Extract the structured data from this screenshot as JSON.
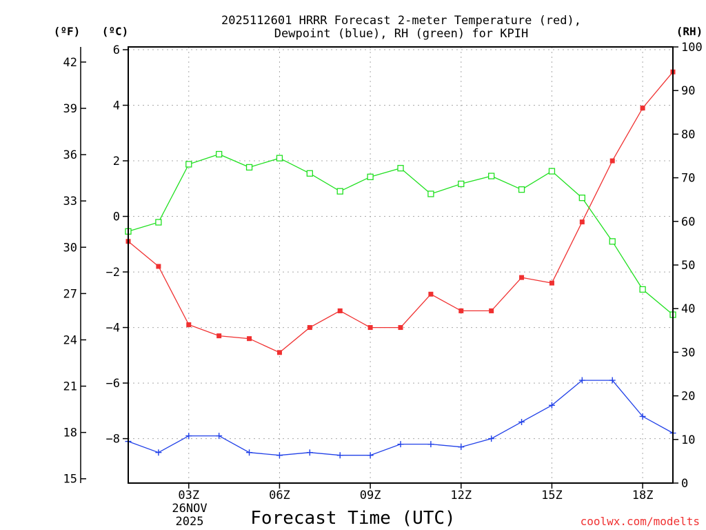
{
  "chart_data": {
    "type": "line",
    "title_line1": "2025112601 HRRR Forecast 2-meter Temperature (red),",
    "title_line2": "Dewpoint (blue), RH (green) for KPIH",
    "xlabel": "Forecast Time (UTC)",
    "date_line1": "26NOV",
    "date_line2": "2025",
    "credit": "coolwx.com/modelts",
    "x_hours": [
      1,
      2,
      3,
      4,
      5,
      6,
      7,
      8,
      9,
      10,
      11,
      12,
      13,
      14,
      15,
      16,
      17,
      18,
      19
    ],
    "x_range": [
      1,
      19
    ],
    "x_ticks": [
      {
        "hour": 3,
        "label": "03Z"
      },
      {
        "hour": 6,
        "label": "06Z"
      },
      {
        "hour": 9,
        "label": "09Z"
      },
      {
        "hour": 12,
        "label": "12Z"
      },
      {
        "hour": 15,
        "label": "15Z"
      },
      {
        "hour": 18,
        "label": "18Z"
      }
    ],
    "left_axis_c": {
      "unit_label": "(ºC)",
      "range": [
        -9.6,
        6.1
      ],
      "ticks": [
        6,
        4,
        2,
        0,
        -2,
        -4,
        -6,
        -8
      ],
      "tick_labels": [
        "6",
        "4",
        "2",
        "0",
        "−2",
        "−4",
        "−6",
        "−8"
      ]
    },
    "left_axis_f": {
      "unit_label": "(ºF)",
      "ticks": [
        42,
        39,
        36,
        33,
        30,
        27,
        24,
        21,
        18,
        15
      ],
      "tick_labels": [
        "42",
        "39",
        "36",
        "33",
        "30",
        "27",
        "24",
        "21",
        "18",
        "15"
      ]
    },
    "right_axis_rh": {
      "unit_label": "(RH)",
      "range": [
        0,
        100
      ],
      "ticks": [
        0,
        10,
        20,
        30,
        40,
        50,
        60,
        70,
        80,
        90,
        100
      ],
      "tick_labels": [
        "0",
        "10",
        "20",
        "30",
        "40",
        "50",
        "60",
        "70",
        "80",
        "90",
        "100"
      ]
    },
    "series": [
      {
        "name": "2-meter Temperature",
        "unit": "C",
        "axis": "left",
        "color": "#f03030",
        "marker": "filled-square",
        "values": [
          -0.9,
          -1.8,
          -3.9,
          -4.3,
          -4.4,
          -4.9,
          -4.0,
          -3.4,
          -4.0,
          -4.0,
          -2.8,
          -3.4,
          -3.4,
          -2.2,
          -2.4,
          -0.2,
          2.0,
          3.9,
          5.2
        ]
      },
      {
        "name": "Dewpoint",
        "unit": "C",
        "axis": "left",
        "color": "#2040e8",
        "marker": "plus",
        "values": [
          -8.1,
          -8.5,
          -7.9,
          -7.9,
          -8.5,
          -8.6,
          -8.5,
          -8.6,
          -8.6,
          -8.2,
          -8.2,
          -8.3,
          -8.0,
          -7.4,
          -6.8,
          -5.9,
          -5.9,
          -7.2,
          -7.8
        ]
      },
      {
        "name": "Relative Humidity",
        "unit": "%",
        "axis": "right",
        "color": "#20e020",
        "marker": "open-square",
        "values": [
          57.7,
          59.8,
          73.1,
          75.4,
          72.4,
          74.5,
          71.0,
          66.9,
          70.2,
          72.2,
          66.3,
          68.6,
          70.4,
          67.3,
          71.5,
          65.4,
          55.4,
          44.4,
          38.6
        ]
      }
    ]
  }
}
